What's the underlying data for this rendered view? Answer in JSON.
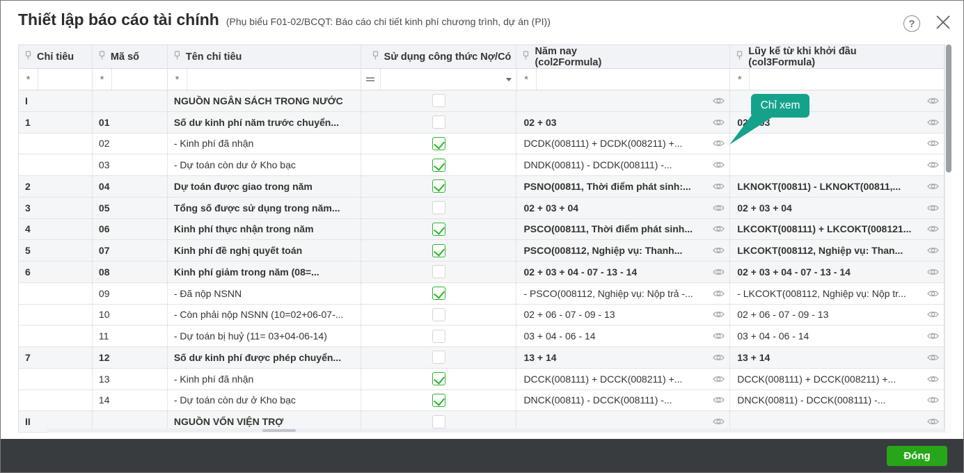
{
  "dialog": {
    "title": "Thiết lập báo cáo tài chính",
    "subtitle": "(Phụ biểu F01-02/BCQT: Báo cáo chi tiết kinh phí chương trình, dự án (PI))"
  },
  "tooltip": {
    "label": "Chỉ xem",
    "color": "#15a28b"
  },
  "footer": {
    "close_label": "Đóng",
    "button_color": "#28a61a",
    "bar_color": "#383c3f"
  },
  "table": {
    "columns": [
      {
        "label": "Chỉ tiêu",
        "sublabel": "",
        "filter_symbol": "*",
        "has_dropdown": false
      },
      {
        "label": "Mã số",
        "sublabel": "",
        "filter_symbol": "*",
        "has_dropdown": false
      },
      {
        "label": "Tên chỉ tiêu",
        "sublabel": "",
        "filter_symbol": "*",
        "has_dropdown": false
      },
      {
        "label": "Sử dụng công thức Nợ/Có",
        "sublabel": "",
        "filter_symbol": "=",
        "has_dropdown": true
      },
      {
        "label": "Năm nay",
        "sublabel": "(col2Formula)",
        "filter_symbol": "*",
        "has_dropdown": false
      },
      {
        "label": "Lũy kế từ khi khởi đầu",
        "sublabel": "(col3Formula)",
        "filter_symbol": "*",
        "has_dropdown": false
      }
    ],
    "rows": [
      {
        "num": "I",
        "code": "",
        "name": "NGUỒN NGÂN SÁCH TRONG NƯỚC",
        "checked": false,
        "f2": "",
        "f3": "",
        "group": true
      },
      {
        "num": "1",
        "code": "01",
        "name": "Số dư kinh phí năm trước chuyển...",
        "checked": false,
        "f2": "02 + 03",
        "f3": "02 + 03",
        "group": true
      },
      {
        "num": "",
        "code": "02",
        "name": "- Kinh phí đã nhận",
        "checked": true,
        "f2": "DCDK(008111) + DCDK(008211) +...",
        "f3": "",
        "group": false
      },
      {
        "num": "",
        "code": "03",
        "name": "- Dự toán còn dư ở Kho bạc",
        "checked": true,
        "f2": "DNDK(00811) - DCDK(008111) -...",
        "f3": "",
        "group": false
      },
      {
        "num": "2",
        "code": "04",
        "name": "Dự toán được giao trong năm",
        "checked": true,
        "f2": "PSNO(00811, Thời điểm phát sinh:...",
        "f3": "LKNOKT(00811) - LKNOKT(00811,...",
        "group": true
      },
      {
        "num": "3",
        "code": "05",
        "name": "Tổng số được sử dụng trong năm...",
        "checked": false,
        "f2": "02 + 03 + 04",
        "f3": "02 + 03 + 04",
        "group": true
      },
      {
        "num": "4",
        "code": "06",
        "name": "Kinh phí thực nhận trong năm",
        "checked": true,
        "f2": "PSCO(008111, Thời điểm phát sinh...",
        "f3": "LKCOKT(008111) + LKCOKT(008121...",
        "group": true
      },
      {
        "num": "5",
        "code": "07",
        "name": "Kinh phí đề nghị quyết toán",
        "checked": true,
        "f2": "PSCO(008112, Nghiệp vụ: Thanh...",
        "f3": "LKCOKT(008112, Nghiệp vụ: Than...",
        "group": true
      },
      {
        "num": "6",
        "code": "08",
        "name": "Kinh phí giảm trong năm (08=...",
        "checked": false,
        "f2": "02 + 03 + 04 - 07 - 13 - 14",
        "f3": "02 + 03 + 04 - 07 - 13 - 14",
        "group": true
      },
      {
        "num": "",
        "code": "09",
        "name": "- Đã nộp NSNN",
        "checked": true,
        "f2": "- PSCO(008112, Nghiệp vụ: Nộp trả -...",
        "f3": "- LKCOKT(008112, Nghiệp vụ: Nộp tr...",
        "group": false
      },
      {
        "num": "",
        "code": "10",
        "name": "- Còn phải nộp NSNN (10=02+06-07-...",
        "checked": false,
        "f2": "02 + 06 - 07 - 09 - 13",
        "f3": "02 + 06 - 07 - 09 - 13",
        "group": false
      },
      {
        "num": "",
        "code": "11",
        "name": "- Dự toán bị huỷ (11= 03+04-06-14)",
        "checked": false,
        "f2": "03 + 04 - 06 - 14",
        "f3": "03 + 04 - 06 - 14",
        "group": false
      },
      {
        "num": "7",
        "code": "12",
        "name": "Số dư kinh phí được phép chuyển...",
        "checked": false,
        "f2": "13 + 14",
        "f3": "13 + 14",
        "group": true
      },
      {
        "num": "",
        "code": "13",
        "name": "- Kinh phí đã nhận",
        "checked": true,
        "f2": "DCCK(008111) + DCCK(008211) +...",
        "f3": "DCCK(008111) + DCCK(008211) +...",
        "group": false
      },
      {
        "num": "",
        "code": "14",
        "name": "- Dự toán còn dư ở Kho bạc",
        "checked": true,
        "f2": "DNCK(00811) - DCCK(008111) -...",
        "f3": "DNCK(00811) - DCCK(008111) -...",
        "group": false
      },
      {
        "num": "II",
        "code": "",
        "name": "NGUỒN VỐN VIỆN TRỢ",
        "checked": false,
        "f2": "",
        "f3": "",
        "group": true
      }
    ]
  }
}
